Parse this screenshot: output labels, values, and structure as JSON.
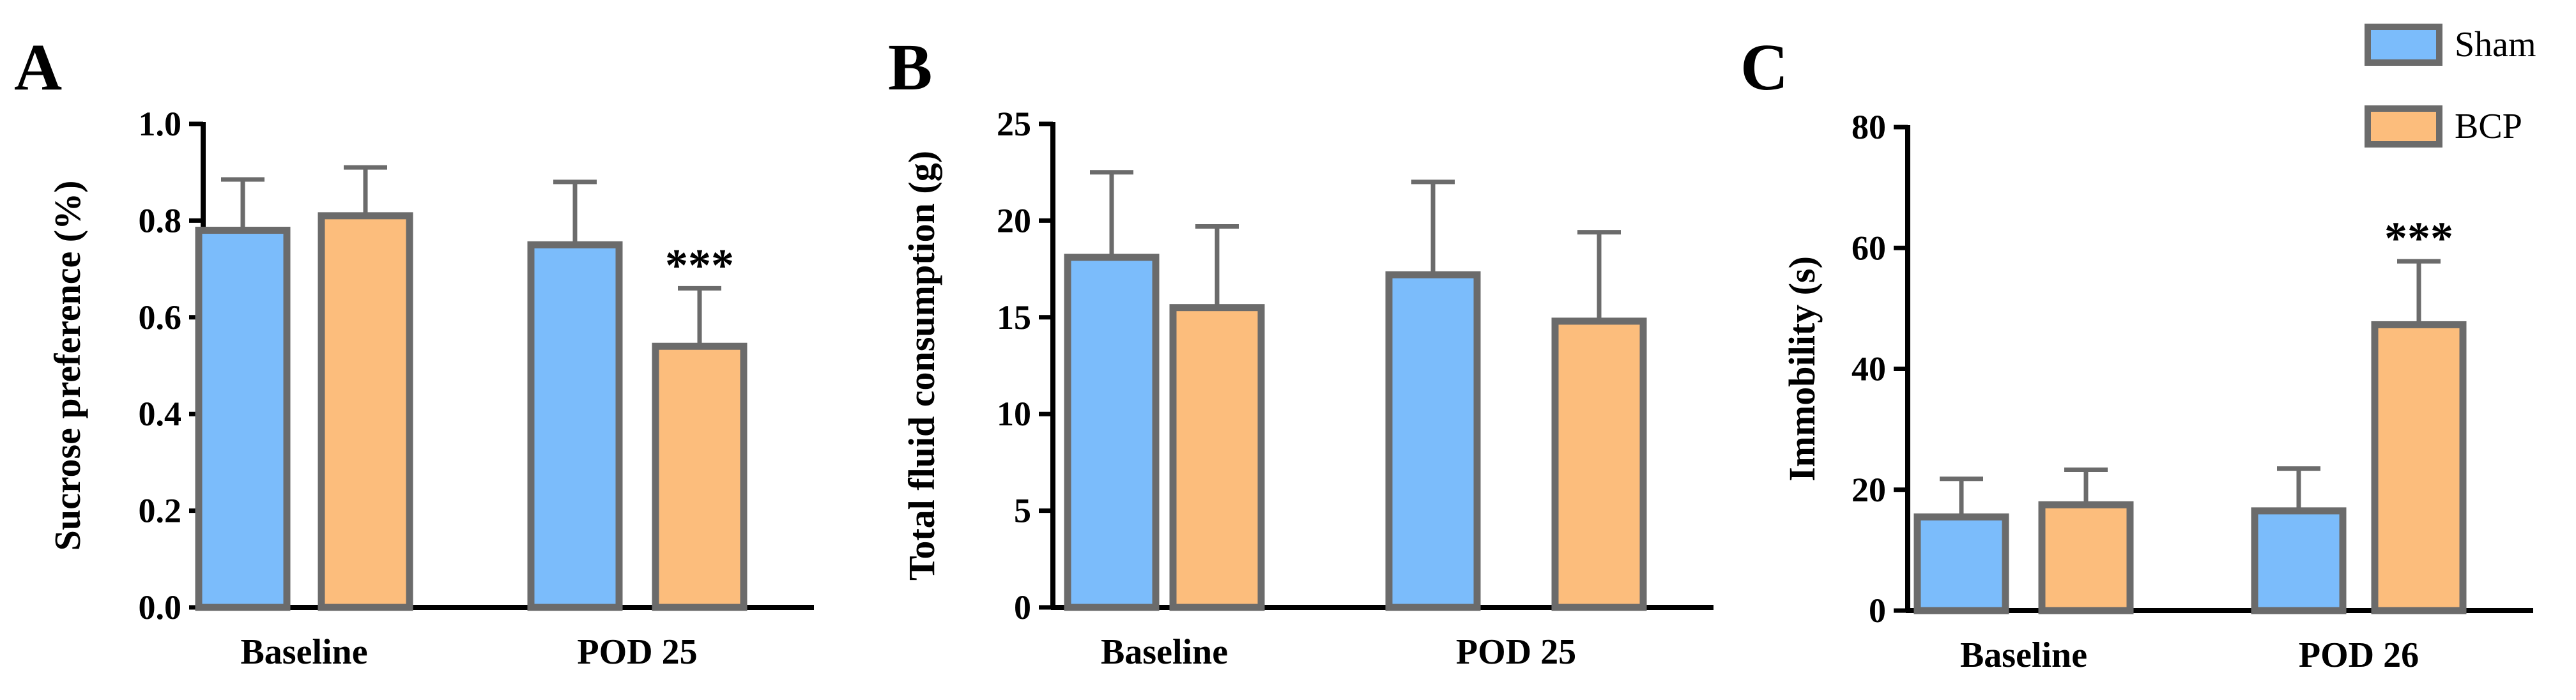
{
  "legend": {
    "position": "top-right",
    "entries": [
      {
        "name": "Sham",
        "color": "#7bbcfb"
      },
      {
        "name": "BCP",
        "color": "#fcbd7c"
      }
    ]
  },
  "style": {
    "edge_color": "#6b6b6b"
  },
  "chart_data": [
    {
      "type": "bar",
      "panel": "A",
      "ylabel": "Sucrose preference (%)",
      "ylim": [
        0,
        1.0
      ],
      "ytick_values": [
        0.0,
        0.2,
        0.4,
        0.6,
        0.8,
        1.0
      ],
      "ytick_labels": [
        "0.0",
        "0.2",
        "0.4",
        "0.6",
        "0.8",
        "1.0"
      ],
      "categories": [
        "Baseline",
        "POD 25"
      ],
      "series": [
        {
          "name": "Sham",
          "values": [
            0.78,
            0.75
          ],
          "errors": [
            0.105,
            0.13
          ],
          "annotations": [
            "",
            ""
          ]
        },
        {
          "name": "BCP",
          "values": [
            0.81,
            0.54
          ],
          "errors": [
            0.1,
            0.12
          ],
          "annotations": [
            "",
            "***"
          ]
        }
      ]
    },
    {
      "type": "bar",
      "panel": "B",
      "ylabel": "Total fluid consumption (g)",
      "ylim": [
        0,
        25
      ],
      "ytick_values": [
        0,
        5,
        10,
        15,
        20,
        25
      ],
      "ytick_labels": [
        "0",
        "5",
        "10",
        "15",
        "20",
        "25"
      ],
      "categories": [
        "Baseline",
        "POD 25"
      ],
      "series": [
        {
          "name": "Sham",
          "values": [
            18.1,
            17.2
          ],
          "errors": [
            4.4,
            4.8
          ],
          "annotations": [
            "",
            ""
          ]
        },
        {
          "name": "BCP",
          "values": [
            15.5,
            14.8
          ],
          "errors": [
            4.2,
            4.6
          ],
          "annotations": [
            "",
            ""
          ]
        }
      ]
    },
    {
      "type": "bar",
      "panel": "C",
      "ylabel": "Immobility (s)",
      "ylim": [
        0,
        80
      ],
      "ytick_values": [
        0,
        20,
        40,
        60,
        80
      ],
      "ytick_labels": [
        "0",
        "20",
        "40",
        "60",
        "80"
      ],
      "categories": [
        "Baseline",
        "POD 26"
      ],
      "series": [
        {
          "name": "Sham",
          "values": [
            15.5,
            16.5
          ],
          "errors": [
            6.3,
            7.0
          ],
          "annotations": [
            "",
            ""
          ]
        },
        {
          "name": "BCP",
          "values": [
            17.5,
            47.3
          ],
          "errors": [
            5.8,
            10.5
          ],
          "annotations": [
            "",
            "***"
          ]
        }
      ]
    }
  ]
}
